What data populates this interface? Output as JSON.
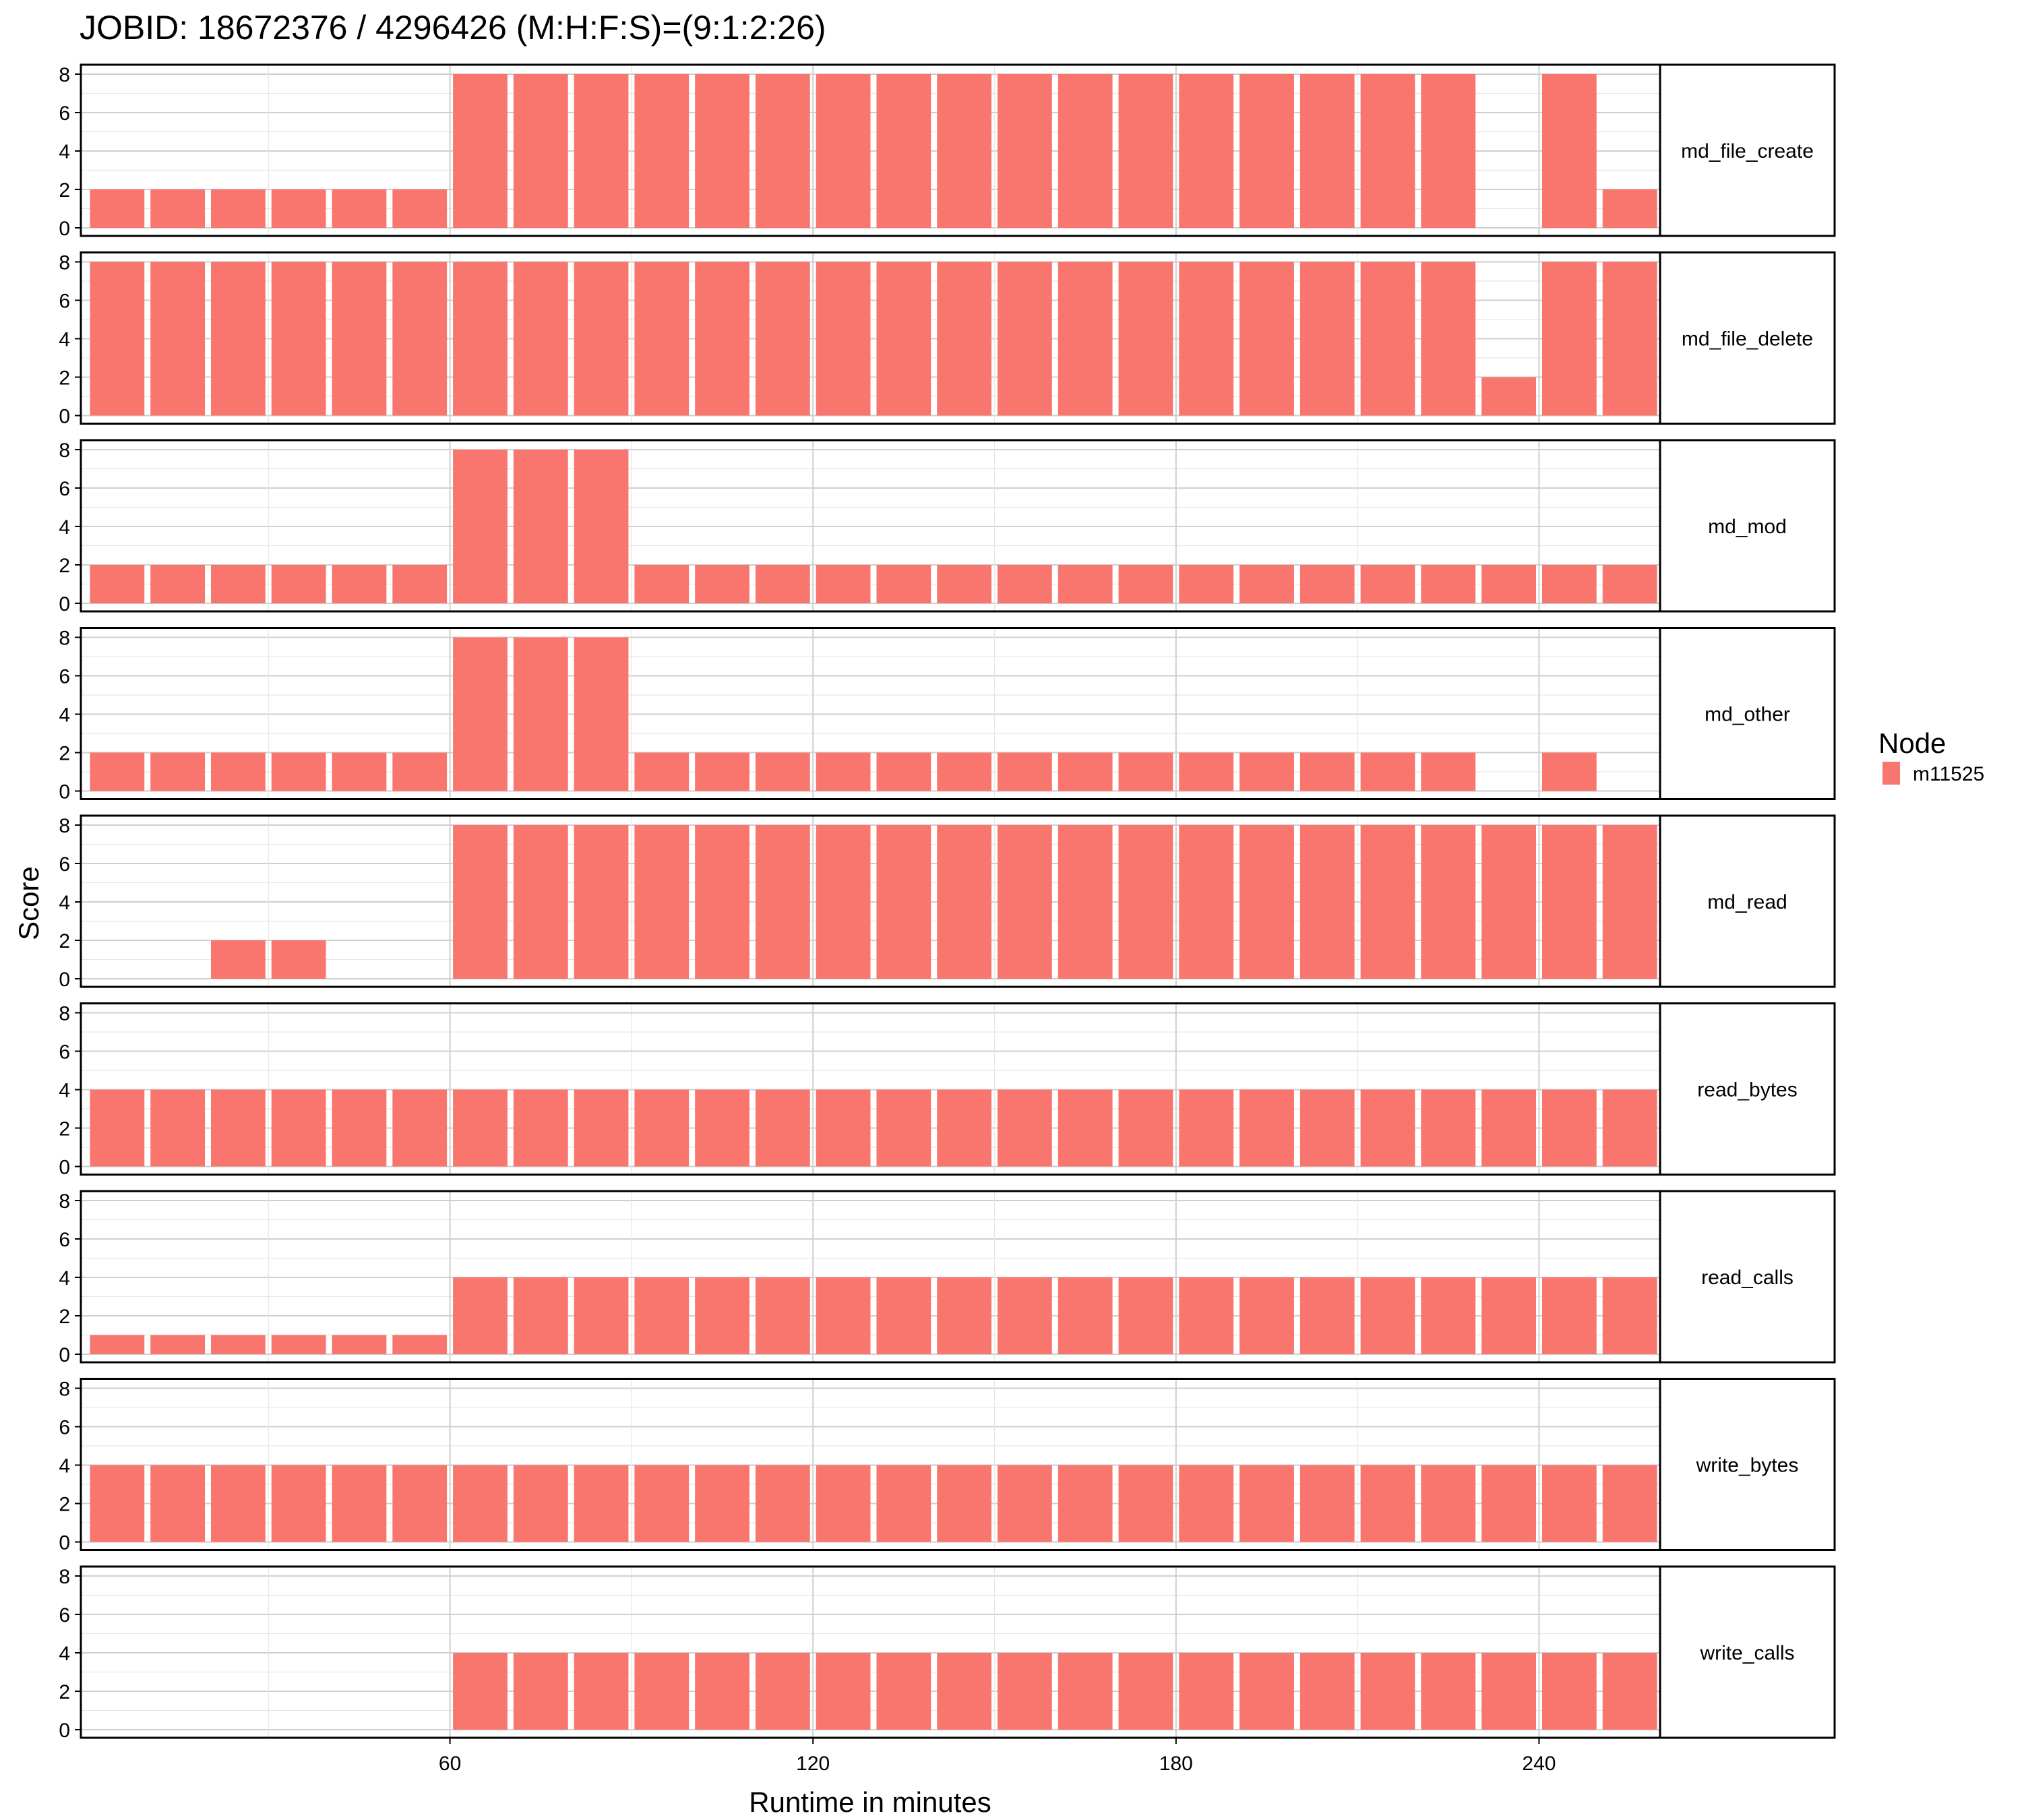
{
  "chart_data": {
    "type": "bar",
    "title": "JOBID: 18672376 / 4296426 (M:H:F:S)=(9:1:2:26)",
    "xlabel": "Runtime in minutes",
    "ylabel": "Score",
    "x": [
      5,
      15,
      25,
      35,
      45,
      55,
      65,
      75,
      85,
      95,
      105,
      115,
      125,
      135,
      145,
      155,
      165,
      175,
      185,
      195,
      205,
      215,
      225,
      235,
      245,
      255
    ],
    "xlim": [
      -1,
      260
    ],
    "xticks": [
      60,
      120,
      180,
      240
    ],
    "ylim": [
      0,
      8
    ],
    "yticks": [
      0,
      2,
      4,
      6,
      8
    ],
    "grid": true,
    "legend": {
      "title": "Node",
      "entries": [
        "m11525"
      ],
      "position": "right"
    },
    "series_color": "#F8766D",
    "facets": [
      {
        "name": "md_file_create",
        "values": [
          2,
          2,
          2,
          2,
          2,
          2,
          8,
          8,
          8,
          8,
          8,
          8,
          8,
          8,
          8,
          8,
          8,
          8,
          8,
          8,
          8,
          8,
          8,
          null,
          8,
          2
        ]
      },
      {
        "name": "md_file_delete",
        "values": [
          8,
          8,
          8,
          8,
          8,
          8,
          8,
          8,
          8,
          8,
          8,
          8,
          8,
          8,
          8,
          8,
          8,
          8,
          8,
          8,
          8,
          8,
          8,
          2,
          8,
          8
        ]
      },
      {
        "name": "md_mod",
        "values": [
          2,
          2,
          2,
          2,
          2,
          2,
          8,
          8,
          8,
          2,
          2,
          2,
          2,
          2,
          2,
          2,
          2,
          2,
          2,
          2,
          2,
          2,
          2,
          2,
          2,
          2
        ]
      },
      {
        "name": "md_other",
        "values": [
          2,
          2,
          2,
          2,
          2,
          2,
          8,
          8,
          8,
          2,
          2,
          2,
          2,
          2,
          2,
          2,
          2,
          2,
          2,
          2,
          2,
          2,
          2,
          null,
          2,
          null
        ]
      },
      {
        "name": "md_read",
        "values": [
          null,
          null,
          2,
          2,
          null,
          null,
          8,
          8,
          8,
          8,
          8,
          8,
          8,
          8,
          8,
          8,
          8,
          8,
          8,
          8,
          8,
          8,
          8,
          8,
          8,
          8
        ]
      },
      {
        "name": "read_bytes",
        "values": [
          4,
          4,
          4,
          4,
          4,
          4,
          4,
          4,
          4,
          4,
          4,
          4,
          4,
          4,
          4,
          4,
          4,
          4,
          4,
          4,
          4,
          4,
          4,
          4,
          4,
          4
        ]
      },
      {
        "name": "read_calls",
        "values": [
          1,
          1,
          1,
          1,
          1,
          1,
          4,
          4,
          4,
          4,
          4,
          4,
          4,
          4,
          4,
          4,
          4,
          4,
          4,
          4,
          4,
          4,
          4,
          4,
          4,
          4
        ]
      },
      {
        "name": "write_bytes",
        "values": [
          4,
          4,
          4,
          4,
          4,
          4,
          4,
          4,
          4,
          4,
          4,
          4,
          4,
          4,
          4,
          4,
          4,
          4,
          4,
          4,
          4,
          4,
          4,
          4,
          4,
          4
        ]
      },
      {
        "name": "write_calls",
        "values": [
          null,
          null,
          null,
          null,
          null,
          null,
          4,
          4,
          4,
          4,
          4,
          4,
          4,
          4,
          4,
          4,
          4,
          4,
          4,
          4,
          4,
          4,
          4,
          4,
          4,
          4
        ]
      }
    ]
  }
}
